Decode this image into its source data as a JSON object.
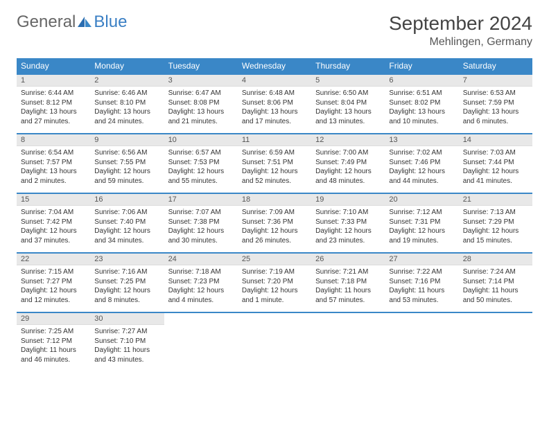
{
  "brand": {
    "part1": "General",
    "part2": "Blue"
  },
  "title": "September 2024",
  "location": "Mehlingen, Germany",
  "colors": {
    "header_bg": "#3a87c7",
    "header_text": "#ffffff",
    "daynum_bg": "#e8e8e8",
    "row_border": "#3a87c7",
    "body_text": "#333333",
    "brand_gray": "#666666",
    "brand_blue": "#3a7fc4"
  },
  "typography": {
    "month_title_pt": 28,
    "location_pt": 16,
    "dow_pt": 12,
    "daynum_pt": 11,
    "body_pt": 10
  },
  "dow": [
    "Sunday",
    "Monday",
    "Tuesday",
    "Wednesday",
    "Thursday",
    "Friday",
    "Saturday"
  ],
  "weeks": [
    [
      {
        "n": "1",
        "sunrise": "Sunrise: 6:44 AM",
        "sunset": "Sunset: 8:12 PM",
        "daylight": "Daylight: 13 hours and 27 minutes."
      },
      {
        "n": "2",
        "sunrise": "Sunrise: 6:46 AM",
        "sunset": "Sunset: 8:10 PM",
        "daylight": "Daylight: 13 hours and 24 minutes."
      },
      {
        "n": "3",
        "sunrise": "Sunrise: 6:47 AM",
        "sunset": "Sunset: 8:08 PM",
        "daylight": "Daylight: 13 hours and 21 minutes."
      },
      {
        "n": "4",
        "sunrise": "Sunrise: 6:48 AM",
        "sunset": "Sunset: 8:06 PM",
        "daylight": "Daylight: 13 hours and 17 minutes."
      },
      {
        "n": "5",
        "sunrise": "Sunrise: 6:50 AM",
        "sunset": "Sunset: 8:04 PM",
        "daylight": "Daylight: 13 hours and 13 minutes."
      },
      {
        "n": "6",
        "sunrise": "Sunrise: 6:51 AM",
        "sunset": "Sunset: 8:02 PM",
        "daylight": "Daylight: 13 hours and 10 minutes."
      },
      {
        "n": "7",
        "sunrise": "Sunrise: 6:53 AM",
        "sunset": "Sunset: 7:59 PM",
        "daylight": "Daylight: 13 hours and 6 minutes."
      }
    ],
    [
      {
        "n": "8",
        "sunrise": "Sunrise: 6:54 AM",
        "sunset": "Sunset: 7:57 PM",
        "daylight": "Daylight: 13 hours and 2 minutes."
      },
      {
        "n": "9",
        "sunrise": "Sunrise: 6:56 AM",
        "sunset": "Sunset: 7:55 PM",
        "daylight": "Daylight: 12 hours and 59 minutes."
      },
      {
        "n": "10",
        "sunrise": "Sunrise: 6:57 AM",
        "sunset": "Sunset: 7:53 PM",
        "daylight": "Daylight: 12 hours and 55 minutes."
      },
      {
        "n": "11",
        "sunrise": "Sunrise: 6:59 AM",
        "sunset": "Sunset: 7:51 PM",
        "daylight": "Daylight: 12 hours and 52 minutes."
      },
      {
        "n": "12",
        "sunrise": "Sunrise: 7:00 AM",
        "sunset": "Sunset: 7:49 PM",
        "daylight": "Daylight: 12 hours and 48 minutes."
      },
      {
        "n": "13",
        "sunrise": "Sunrise: 7:02 AM",
        "sunset": "Sunset: 7:46 PM",
        "daylight": "Daylight: 12 hours and 44 minutes."
      },
      {
        "n": "14",
        "sunrise": "Sunrise: 7:03 AM",
        "sunset": "Sunset: 7:44 PM",
        "daylight": "Daylight: 12 hours and 41 minutes."
      }
    ],
    [
      {
        "n": "15",
        "sunrise": "Sunrise: 7:04 AM",
        "sunset": "Sunset: 7:42 PM",
        "daylight": "Daylight: 12 hours and 37 minutes."
      },
      {
        "n": "16",
        "sunrise": "Sunrise: 7:06 AM",
        "sunset": "Sunset: 7:40 PM",
        "daylight": "Daylight: 12 hours and 34 minutes."
      },
      {
        "n": "17",
        "sunrise": "Sunrise: 7:07 AM",
        "sunset": "Sunset: 7:38 PM",
        "daylight": "Daylight: 12 hours and 30 minutes."
      },
      {
        "n": "18",
        "sunrise": "Sunrise: 7:09 AM",
        "sunset": "Sunset: 7:36 PM",
        "daylight": "Daylight: 12 hours and 26 minutes."
      },
      {
        "n": "19",
        "sunrise": "Sunrise: 7:10 AM",
        "sunset": "Sunset: 7:33 PM",
        "daylight": "Daylight: 12 hours and 23 minutes."
      },
      {
        "n": "20",
        "sunrise": "Sunrise: 7:12 AM",
        "sunset": "Sunset: 7:31 PM",
        "daylight": "Daylight: 12 hours and 19 minutes."
      },
      {
        "n": "21",
        "sunrise": "Sunrise: 7:13 AM",
        "sunset": "Sunset: 7:29 PM",
        "daylight": "Daylight: 12 hours and 15 minutes."
      }
    ],
    [
      {
        "n": "22",
        "sunrise": "Sunrise: 7:15 AM",
        "sunset": "Sunset: 7:27 PM",
        "daylight": "Daylight: 12 hours and 12 minutes."
      },
      {
        "n": "23",
        "sunrise": "Sunrise: 7:16 AM",
        "sunset": "Sunset: 7:25 PM",
        "daylight": "Daylight: 12 hours and 8 minutes."
      },
      {
        "n": "24",
        "sunrise": "Sunrise: 7:18 AM",
        "sunset": "Sunset: 7:23 PM",
        "daylight": "Daylight: 12 hours and 4 minutes."
      },
      {
        "n": "25",
        "sunrise": "Sunrise: 7:19 AM",
        "sunset": "Sunset: 7:20 PM",
        "daylight": "Daylight: 12 hours and 1 minute."
      },
      {
        "n": "26",
        "sunrise": "Sunrise: 7:21 AM",
        "sunset": "Sunset: 7:18 PM",
        "daylight": "Daylight: 11 hours and 57 minutes."
      },
      {
        "n": "27",
        "sunrise": "Sunrise: 7:22 AM",
        "sunset": "Sunset: 7:16 PM",
        "daylight": "Daylight: 11 hours and 53 minutes."
      },
      {
        "n": "28",
        "sunrise": "Sunrise: 7:24 AM",
        "sunset": "Sunset: 7:14 PM",
        "daylight": "Daylight: 11 hours and 50 minutes."
      }
    ],
    [
      {
        "n": "29",
        "sunrise": "Sunrise: 7:25 AM",
        "sunset": "Sunset: 7:12 PM",
        "daylight": "Daylight: 11 hours and 46 minutes."
      },
      {
        "n": "30",
        "sunrise": "Sunrise: 7:27 AM",
        "sunset": "Sunset: 7:10 PM",
        "daylight": "Daylight: 11 hours and 43 minutes."
      },
      null,
      null,
      null,
      null,
      null
    ]
  ]
}
